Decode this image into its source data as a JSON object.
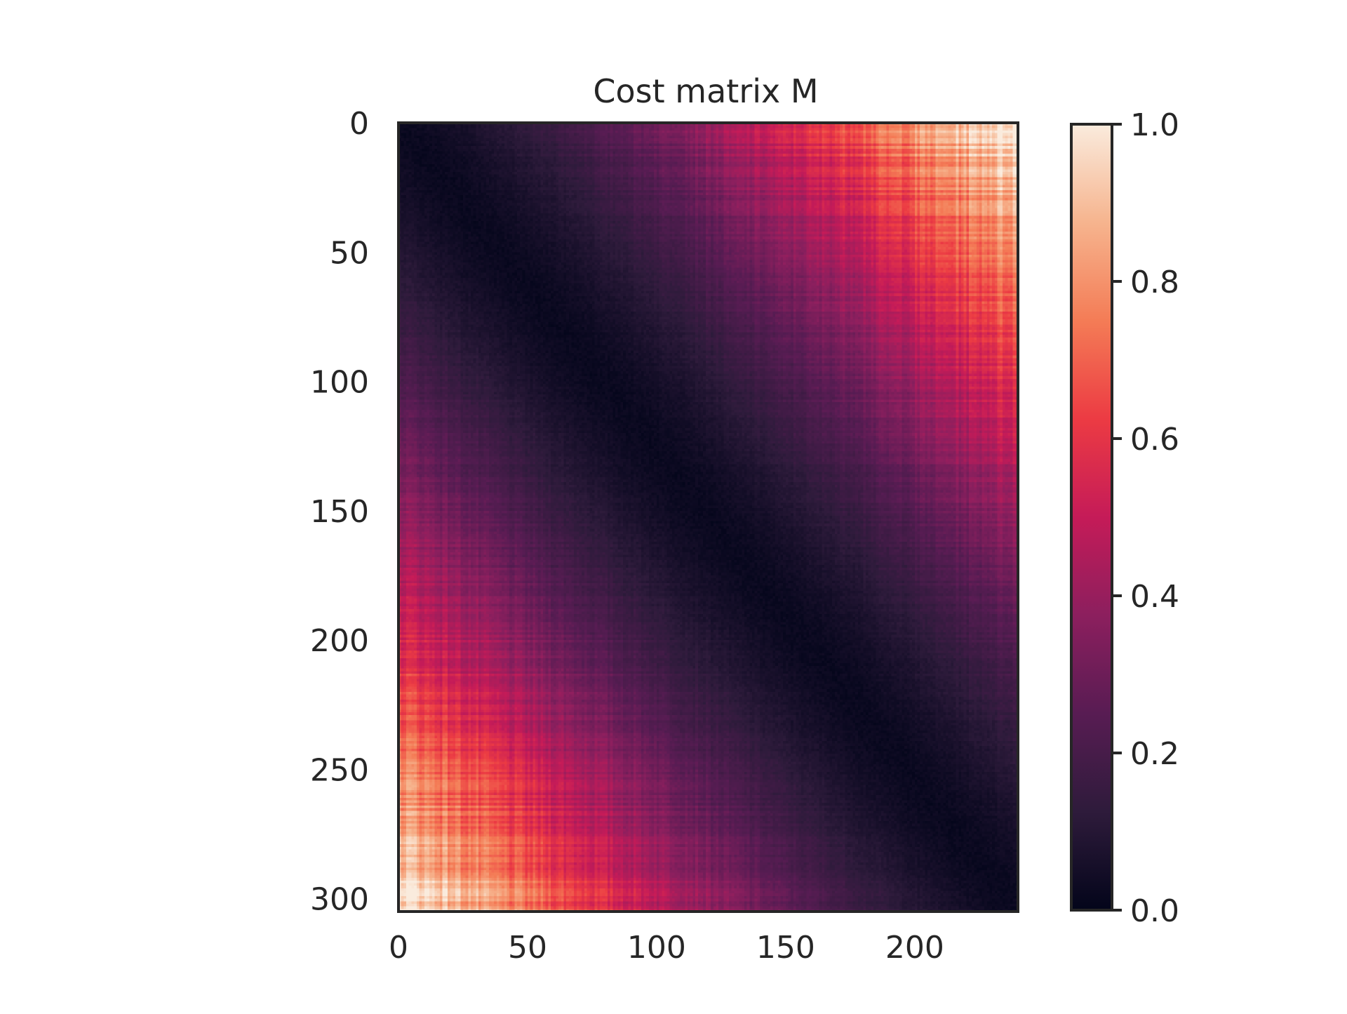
{
  "chart_data": {
    "type": "heatmap",
    "title": "Cost matrix M",
    "xlabel": "",
    "ylabel": "",
    "rows": 305,
    "cols": 240,
    "xlim": [
      0,
      240
    ],
    "ylim": [
      305,
      0
    ],
    "x_ticks": [
      0,
      50,
      100,
      150,
      200
    ],
    "y_ticks": [
      0,
      50,
      100,
      150,
      200,
      250,
      300
    ],
    "colorbar": {
      "range": [
        0.0,
        1.0
      ],
      "ticks": [
        0.0,
        0.2,
        0.4,
        0.6,
        0.8,
        1.0
      ],
      "tick_labels": [
        "0.0",
        "0.2",
        "0.4",
        "0.6",
        "0.8",
        "1.0"
      ],
      "colormap": "rocket",
      "colormap_stops": [
        "#03051a",
        "#2e1b3b",
        "#581c53",
        "#8c1f5e",
        "#c51b58",
        "#ec3b43",
        "#f47c56",
        "#f6b48e",
        "#faebdd"
      ]
    },
    "pattern": "value grows with distance from the diagonal running from top-left (0,0) to bottom-right (305,240); maxima near 1.0 at top-right and bottom-left corners, near 0 along the diagonal",
    "grid": false
  }
}
